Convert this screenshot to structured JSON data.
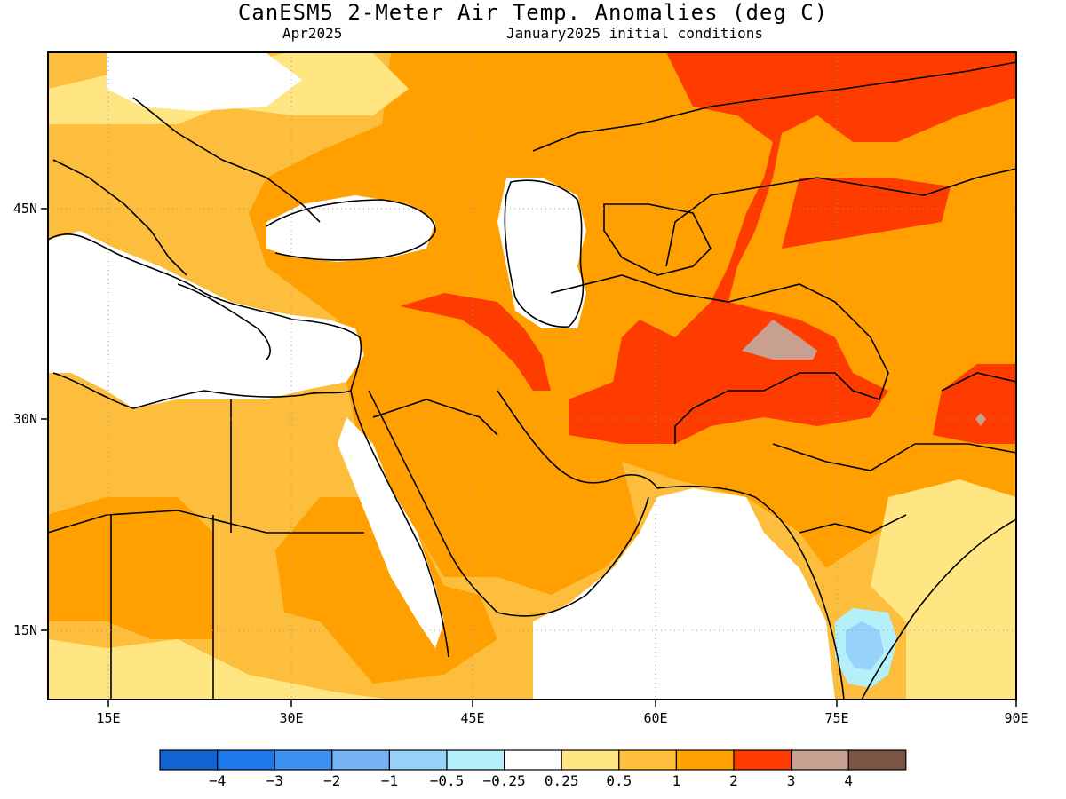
{
  "title": "CanESM5 2-Meter Air Temp. Anomalies (deg C)",
  "subtitle_left": "Apr2025",
  "subtitle_right": "January2025 initial conditions",
  "lon_ticks": [
    "15E",
    "30E",
    "45E",
    "60E",
    "75E",
    "90E"
  ],
  "lat_ticks": [
    "45N",
    "30N",
    "15N"
  ],
  "colorbar": {
    "colors": [
      "#1463d2",
      "#1f78eb",
      "#3c91f0",
      "#78b4f5",
      "#96d2fa",
      "#b4f0fa",
      "#ffffff",
      "#ffe682",
      "#ffbe3c",
      "#ffa000",
      "#ff3c00",
      "#c8a091",
      "#7d5546"
    ],
    "labels": [
      "-4",
      "-3",
      "-2",
      "-1",
      "-0.5",
      "-0.25",
      "0.25",
      "0.5",
      "1",
      "2",
      "3",
      "4"
    ]
  },
  "palette": {
    "light_yellow": "#ffe682",
    "light_orange": "#fcbe3c",
    "orange": "#ffa000",
    "red": "#ff3c00",
    "brown": "#c8a091",
    "light_cyan": "#b4f0fa",
    "light_blue": "#96d2fa"
  }
}
